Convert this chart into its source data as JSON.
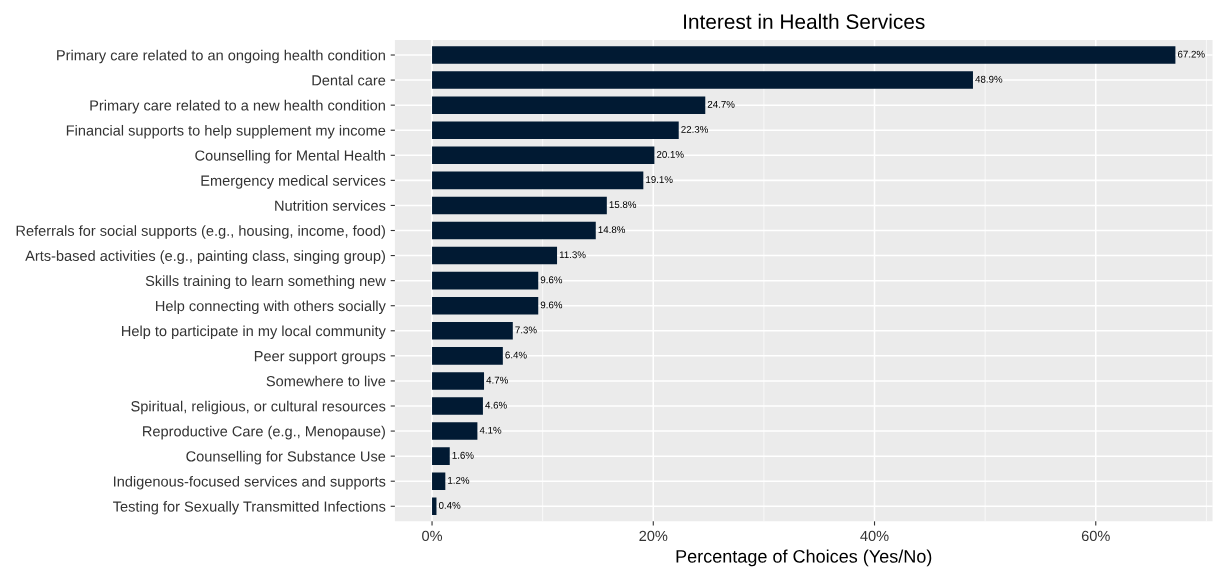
{
  "chart_data": {
    "type": "bar",
    "orientation": "horizontal",
    "title": "Interest in Health Services",
    "xlabel": "Percentage of Choices (Yes/No)",
    "categories": [
      "Primary care related to an ongoing health condition",
      "Dental care",
      "Primary care related to a new health condition",
      "Financial supports to help supplement my income",
      "Counselling for Mental Health",
      "Emergency medical services",
      "Nutrition services",
      "Referrals for social supports (e.g., housing, income, food)",
      "Arts-based activities (e.g., painting class, singing group)",
      "Skills training to learn something new",
      "Help connecting with others socially",
      "Help to participate in my local community",
      "Peer support groups",
      "Somewhere to live",
      "Spiritual, religious, or cultural resources",
      "Reproductive Care (e.g., Menopause)",
      "Counselling for Substance Use",
      "Indigenous-focused services and supports",
      "Testing for Sexually Transmitted Infections"
    ],
    "values": [
      67.2,
      48.9,
      24.7,
      22.3,
      20.1,
      19.1,
      15.8,
      14.8,
      11.3,
      9.6,
      9.6,
      7.3,
      6.4,
      4.7,
      4.6,
      4.1,
      1.6,
      1.2,
      0.4
    ],
    "value_labels": [
      "67.2%",
      "48.9%",
      "24.7%",
      "22.3%",
      "20.1%",
      "19.1%",
      "15.8%",
      "14.8%",
      "11.3%",
      "9.6%",
      "9.6%",
      "7.3%",
      "6.4%",
      "4.7%",
      "4.6%",
      "4.1%",
      "1.6%",
      "1.2%",
      "0.4%"
    ],
    "color": "#011a33",
    "xlim": [
      -3.36,
      70.56
    ],
    "xticks": [
      {
        "value": 0,
        "label": "0%"
      },
      {
        "value": 20,
        "label": "20%"
      },
      {
        "value": 40,
        "label": "40%"
      },
      {
        "value": 60,
        "label": "60%"
      }
    ],
    "grid": true
  }
}
